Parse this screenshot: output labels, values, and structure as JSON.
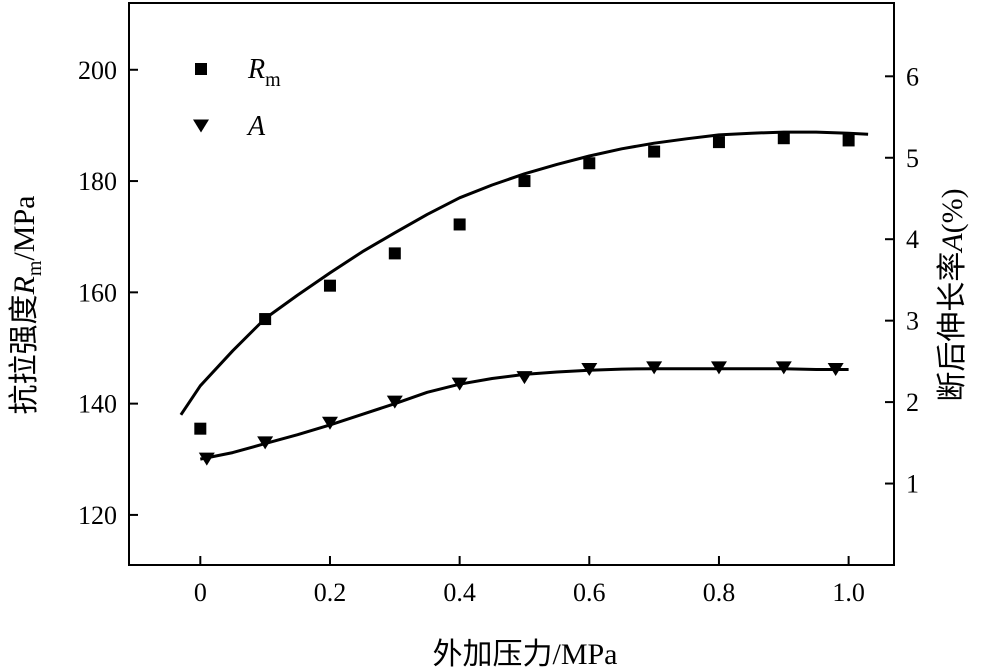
{
  "chart_data": {
    "type": "scatter",
    "xlabel": "外加压力/MPa",
    "ylabel_left": {
      "prefix": "抗拉强度",
      "symbol": "R",
      "subscript": "m",
      "suffix": "/MPa"
    },
    "ylabel_right": {
      "prefix": "断后伸长率",
      "symbol": "A",
      "suffix": "(%)"
    },
    "xlim": [
      -0.11,
      1.07
    ],
    "ylim_left": [
      111,
      212
    ],
    "ylim_right": [
      0.0,
      6.9
    ],
    "x_ticks": [
      "0",
      "0.2",
      "0.4",
      "0.6",
      "0.8",
      "1.0"
    ],
    "y_left_ticks": [
      "120",
      "140",
      "160",
      "180",
      "200"
    ],
    "y_right_ticks": [
      "1",
      "2",
      "3",
      "4",
      "5",
      "6"
    ],
    "legend_position": "top-left",
    "series": [
      {
        "name": "Rm",
        "legend_symbol": "R",
        "legend_sub": "m",
        "marker": "square",
        "axis": "left",
        "x": [
          0,
          0.1,
          0.2,
          0.3,
          0.4,
          0.5,
          0.6,
          0.7,
          0.8,
          0.9,
          1.0
        ],
        "y": [
          135.5,
          155.2,
          161.2,
          167.0,
          172.2,
          180.0,
          183.2,
          185.3,
          187.0,
          187.7,
          187.3
        ],
        "fit_x": [
          -0.03,
          0.0,
          0.05,
          0.1,
          0.15,
          0.2,
          0.25,
          0.3,
          0.35,
          0.4,
          0.45,
          0.5,
          0.55,
          0.6,
          0.65,
          0.7,
          0.75,
          0.8,
          0.85,
          0.9,
          0.95,
          1.0,
          1.03
        ],
        "fit_y": [
          138.0,
          143.2,
          149.5,
          155.3,
          159.5,
          163.5,
          167.3,
          170.7,
          174.0,
          177.0,
          179.3,
          181.3,
          183.0,
          184.5,
          185.8,
          186.8,
          187.6,
          188.3,
          188.6,
          188.8,
          188.8,
          188.6,
          188.4
        ]
      },
      {
        "name": "A",
        "legend_symbol": "A",
        "legend_sub": "",
        "marker": "triangle-down",
        "axis": "right",
        "x": [
          0.01,
          0.1,
          0.2,
          0.3,
          0.4,
          0.5,
          0.6,
          0.7,
          0.8,
          0.9,
          0.98
        ],
        "y": [
          1.3,
          1.5,
          1.74,
          2.0,
          2.22,
          2.3,
          2.4,
          2.42,
          2.42,
          2.42,
          2.4
        ],
        "fit_x": [
          0.0,
          0.05,
          0.1,
          0.15,
          0.2,
          0.25,
          0.3,
          0.35,
          0.4,
          0.45,
          0.5,
          0.55,
          0.6,
          0.65,
          0.7,
          0.75,
          0.8,
          0.85,
          0.9,
          0.95,
          1.0
        ],
        "fit_y": [
          1.3,
          1.38,
          1.49,
          1.6,
          1.72,
          1.85,
          1.98,
          2.12,
          2.22,
          2.29,
          2.34,
          2.37,
          2.39,
          2.405,
          2.41,
          2.41,
          2.41,
          2.41,
          2.41,
          2.4,
          2.4
        ]
      }
    ]
  }
}
